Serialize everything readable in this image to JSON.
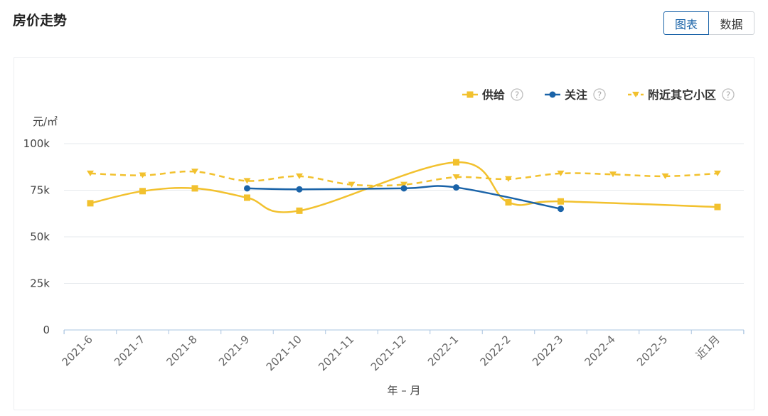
{
  "header": {
    "title": "房价走势",
    "toggle": {
      "chart_label": "图表",
      "data_label": "数据"
    }
  },
  "colors": {
    "supply": "#f2c12e",
    "watch": "#1a63a8",
    "nearby": "#f2c12e",
    "grid": "#e6e9ed",
    "axis": "#aac4e0"
  },
  "legend": [
    {
      "key": "supply",
      "label": "供给",
      "icon": "help-icon"
    },
    {
      "key": "watch",
      "label": "关注",
      "icon": "help-icon"
    },
    {
      "key": "nearby",
      "label": "附近其它小区",
      "icon": "help-icon"
    }
  ],
  "chart_data": {
    "type": "line",
    "ylabel": "元/㎡",
    "xlabel": "年 – 月",
    "ylim": [
      0,
      100000
    ],
    "yticks": [
      0,
      25000,
      50000,
      75000,
      100000
    ],
    "ytick_labels": [
      "0",
      "25k",
      "50k",
      "75k",
      "100k"
    ],
    "categories": [
      "2021-6",
      "2021-7",
      "2021-8",
      "2021-9",
      "2021-10",
      "2021-11",
      "2021-12",
      "2022-1",
      "2022-2",
      "2022-3",
      "2022-4",
      "2022-5",
      "近1月"
    ],
    "grid": true,
    "legend_position": "top-right",
    "series": [
      {
        "name": "供给",
        "key": "supply",
        "marker": "square",
        "line": "solid",
        "values": [
          68000,
          74500,
          76000,
          71000,
          64000,
          null,
          null,
          90000,
          68500,
          69000,
          null,
          null,
          66000
        ]
      },
      {
        "name": "关注",
        "key": "watch",
        "marker": "circle",
        "line": "solid",
        "values": [
          null,
          null,
          null,
          76000,
          75500,
          null,
          76000,
          76500,
          null,
          65000,
          null,
          null,
          null
        ]
      },
      {
        "name": "附近其它小区",
        "key": "nearby",
        "marker": "triangle-down",
        "line": "dashed",
        "values": [
          84000,
          83000,
          85000,
          80000,
          82500,
          78000,
          78000,
          82000,
          81000,
          84000,
          83500,
          82500,
          84000
        ]
      }
    ]
  }
}
